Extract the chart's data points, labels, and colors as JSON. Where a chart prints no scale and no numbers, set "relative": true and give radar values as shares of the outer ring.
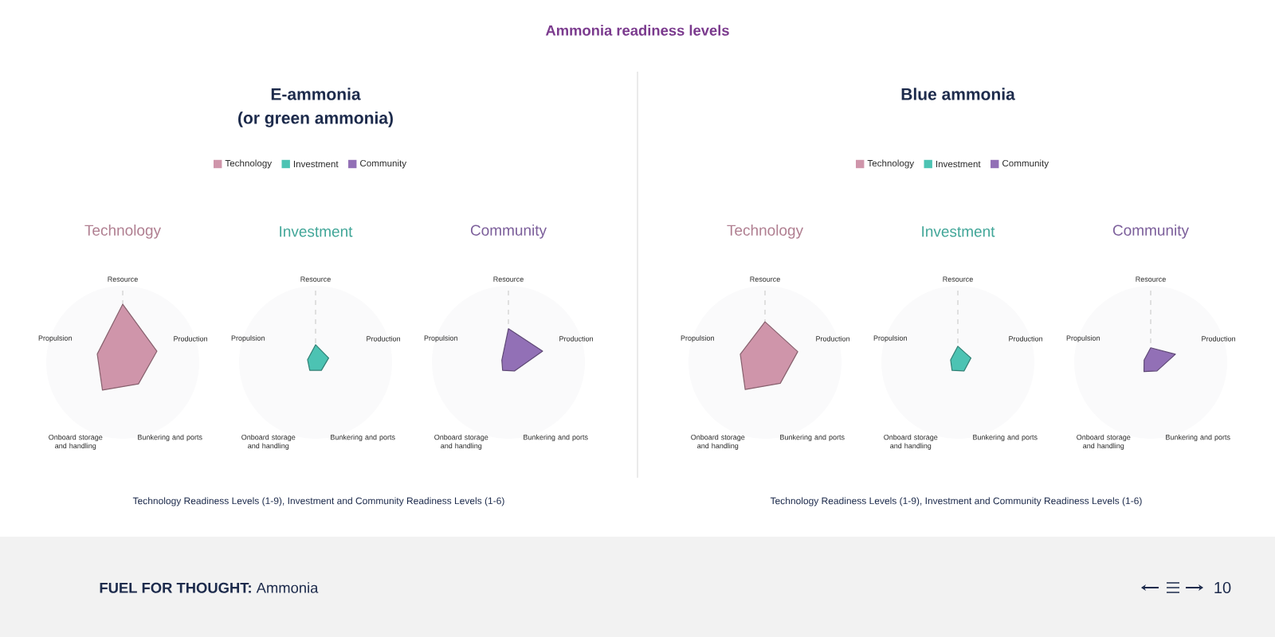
{
  "chart_data": [
    {
      "type": "radar",
      "title": "Technology",
      "categories": [
        "Resource",
        "Production",
        "Bunkering and ports",
        "Onboard storage and handling",
        "Propulsion"
      ],
      "series": [
        {
          "name": "Technology",
          "color": "#cf95aa",
          "values": [
            0.76,
            0.47,
            0.35,
            0.45,
            0.35
          ]
        }
      ],
      "relative": true,
      "legend": "top",
      "annotations": [
        "Ammonia readiness levels",
        "E-ammonia",
        "(or green ammonia)",
        "Technology Readiness Levels (1-9), Investment and Community Readiness Levels (1-6)",
        "**FUEL FOR THOUGHT:** Ammonia",
        "10"
      ]
    },
    {
      "type": "radar",
      "title": "Investment",
      "categories": [
        "Resource",
        "Production",
        "Bunkering and ports",
        "Onboard storage and handling",
        "Propulsion"
      ],
      "series": [
        {
          "name": "Investment",
          "color": "#4cc3b3",
          "values": [
            0.23,
            0.18,
            0.13,
            0.13,
            0.11
          ]
        }
      ],
      "relative": true,
      "legend": "top"
    },
    {
      "type": "radar",
      "title": "Community",
      "categories": [
        "Resource",
        "Production",
        "Bunkering and ports",
        "Onboard storage and handling",
        "Propulsion"
      ],
      "series": [
        {
          "name": "Community",
          "color": "#9270b6",
          "values": [
            0.44,
            0.47,
            0.14,
            0.13,
            0.09
          ]
        }
      ],
      "relative": true,
      "legend": "top"
    },
    {
      "type": "radar",
      "title": "Technology",
      "categories": [
        "Resource",
        "Production",
        "Bunkering and ports",
        "Onboard storage and handling",
        "Propulsion"
      ],
      "series": [
        {
          "name": "Technology",
          "color": "#cf95aa",
          "values": [
            0.53,
            0.45,
            0.34,
            0.44,
            0.34
          ]
        }
      ],
      "relative": true,
      "legend": "top",
      "annotations": [
        "Blue ammonia",
        "Technology Readiness Levels (1-9), Investment and Community Readiness Levels (1-6)"
      ]
    },
    {
      "type": "radar",
      "title": "Investment",
      "categories": [
        "Resource",
        "Production",
        "Bunkering and ports",
        "Onboard storage and handling",
        "Propulsion"
      ],
      "series": [
        {
          "name": "Investment",
          "color": "#4cc3b3",
          "values": [
            0.21,
            0.18,
            0.14,
            0.13,
            0.1
          ]
        }
      ],
      "relative": true,
      "legend": "top"
    },
    {
      "type": "radar",
      "title": "Community",
      "categories": [
        "Resource",
        "Production",
        "Bunkering and ports",
        "Onboard storage and handling",
        "Propulsion"
      ],
      "series": [
        {
          "name": "Community",
          "color": "#9270b6",
          "values": [
            0.19,
            0.34,
            0.14,
            0.15,
            0.09
          ]
        }
      ],
      "relative": true,
      "legend": "top"
    }
  ]
}
